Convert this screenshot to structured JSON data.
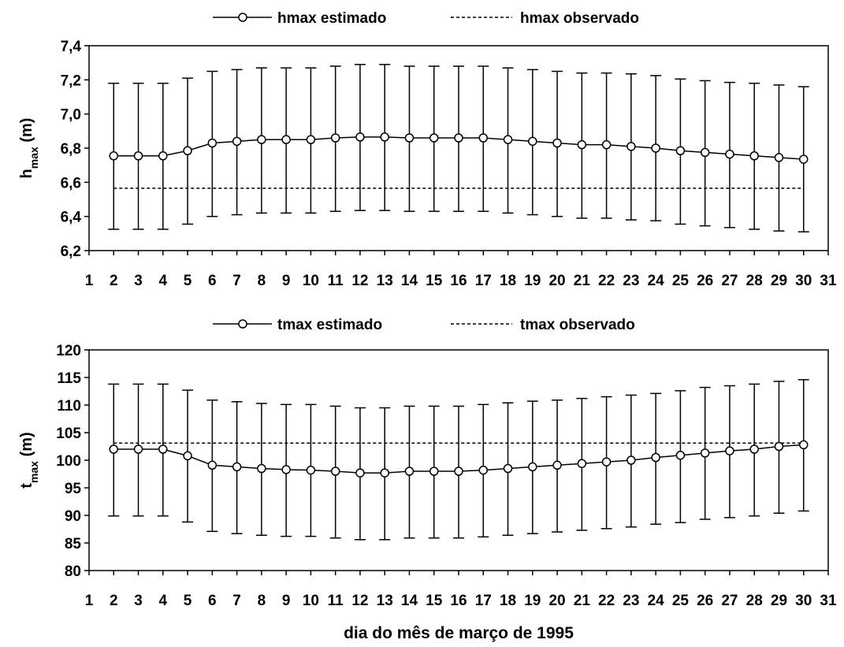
{
  "xlabel": "dia do mês de março de 1995",
  "chart_data": [
    {
      "type": "line",
      "legend": {
        "estimated": "hmax estimado",
        "observed": "hmax observado",
        "placement": "top-center"
      },
      "ylabel": {
        "base": "h",
        "sub": "max",
        "unit": " (m)"
      },
      "xlim": [
        1,
        31
      ],
      "ylim": [
        6.2,
        7.4
      ],
      "x_ticks": [
        1,
        2,
        3,
        4,
        5,
        6,
        7,
        8,
        9,
        10,
        11,
        12,
        13,
        14,
        15,
        16,
        17,
        18,
        19,
        20,
        21,
        22,
        23,
        24,
        25,
        26,
        27,
        28,
        29,
        30,
        31
      ],
      "y_ticks": [
        "6,2",
        "6,4",
        "6,6",
        "6,8",
        "7,0",
        "7,2",
        "7,4"
      ],
      "y_tick_values": [
        6.2,
        6.4,
        6.6,
        6.8,
        7.0,
        7.2,
        7.4
      ],
      "x": [
        2,
        3,
        4,
        5,
        6,
        7,
        8,
        9,
        10,
        11,
        12,
        13,
        14,
        15,
        16,
        17,
        18,
        19,
        20,
        21,
        22,
        23,
        24,
        25,
        26,
        27,
        28,
        29,
        30
      ],
      "series": [
        {
          "name": "hmax estimado",
          "style": "line-circle-markers",
          "values": [
            6.755,
            6.755,
            6.755,
            6.785,
            6.83,
            6.84,
            6.85,
            6.85,
            6.85,
            6.86,
            6.865,
            6.865,
            6.86,
            6.86,
            6.86,
            6.86,
            6.85,
            6.84,
            6.83,
            6.82,
            6.82,
            6.81,
            6.8,
            6.785,
            6.775,
            6.765,
            6.755,
            6.745,
            6.735
          ],
          "error_low": [
            6.325,
            6.325,
            6.325,
            6.355,
            6.4,
            6.41,
            6.42,
            6.42,
            6.42,
            6.43,
            6.435,
            6.435,
            6.43,
            6.43,
            6.43,
            6.43,
            6.42,
            6.41,
            6.4,
            6.39,
            6.39,
            6.38,
            6.375,
            6.355,
            6.345,
            6.335,
            6.325,
            6.315,
            6.31
          ],
          "error_high": [
            7.18,
            7.18,
            7.18,
            7.21,
            7.25,
            7.26,
            7.27,
            7.27,
            7.27,
            7.28,
            7.29,
            7.29,
            7.28,
            7.28,
            7.28,
            7.28,
            7.27,
            7.26,
            7.25,
            7.24,
            7.24,
            7.235,
            7.225,
            7.205,
            7.195,
            7.185,
            7.18,
            7.17,
            7.16
          ]
        },
        {
          "name": "hmax observado",
          "style": "dashed",
          "x_range": [
            2,
            30
          ],
          "value": 6.565
        }
      ],
      "grid": false
    },
    {
      "type": "line",
      "legend": {
        "estimated": "tmax estimado",
        "observed": "tmax observado",
        "placement": "top-center"
      },
      "ylabel": {
        "base": "t",
        "sub": "max",
        "unit": " (m)"
      },
      "xlim": [
        1,
        31
      ],
      "ylim": [
        80,
        120
      ],
      "x_ticks": [
        1,
        2,
        3,
        4,
        5,
        6,
        7,
        8,
        9,
        10,
        11,
        12,
        13,
        14,
        15,
        16,
        17,
        18,
        19,
        20,
        21,
        22,
        23,
        24,
        25,
        26,
        27,
        28,
        29,
        30,
        31
      ],
      "y_ticks": [
        "80",
        "85",
        "90",
        "95",
        "100",
        "105",
        "110",
        "115",
        "120"
      ],
      "y_tick_values": [
        80,
        85,
        90,
        95,
        100,
        105,
        110,
        115,
        120
      ],
      "x": [
        2,
        3,
        4,
        5,
        6,
        7,
        8,
        9,
        10,
        11,
        12,
        13,
        14,
        15,
        16,
        17,
        18,
        19,
        20,
        21,
        22,
        23,
        24,
        25,
        26,
        27,
        28,
        29,
        30
      ],
      "series": [
        {
          "name": "tmax estimado",
          "style": "line-circle-markers",
          "values": [
            102,
            102,
            102,
            100.8,
            99.1,
            98.8,
            98.5,
            98.3,
            98.2,
            98.0,
            97.7,
            97.7,
            98.0,
            98.0,
            98.0,
            98.2,
            98.5,
            98.8,
            99.1,
            99.4,
            99.7,
            100.0,
            100.5,
            100.9,
            101.3,
            101.7,
            102.0,
            102.5,
            102.8
          ],
          "error_low": [
            89.9,
            89.9,
            89.9,
            88.8,
            87.1,
            86.7,
            86.4,
            86.2,
            86.2,
            85.9,
            85.6,
            85.6,
            85.9,
            85.9,
            85.9,
            86.1,
            86.4,
            86.7,
            87.0,
            87.3,
            87.6,
            87.9,
            88.4,
            88.7,
            89.3,
            89.6,
            89.9,
            90.4,
            90.8
          ],
          "error_high": [
            113.8,
            113.8,
            113.8,
            112.7,
            110.9,
            110.6,
            110.3,
            110.1,
            110.1,
            109.8,
            109.5,
            109.5,
            109.8,
            109.8,
            109.8,
            110.1,
            110.4,
            110.7,
            110.9,
            111.2,
            111.5,
            111.8,
            112.1,
            112.6,
            113.2,
            113.5,
            113.8,
            114.3,
            114.6
          ]
        },
        {
          "name": "tmax observado",
          "style": "dashed",
          "x_range": [
            2,
            30
          ],
          "value": 103.1
        }
      ],
      "grid": false
    }
  ]
}
